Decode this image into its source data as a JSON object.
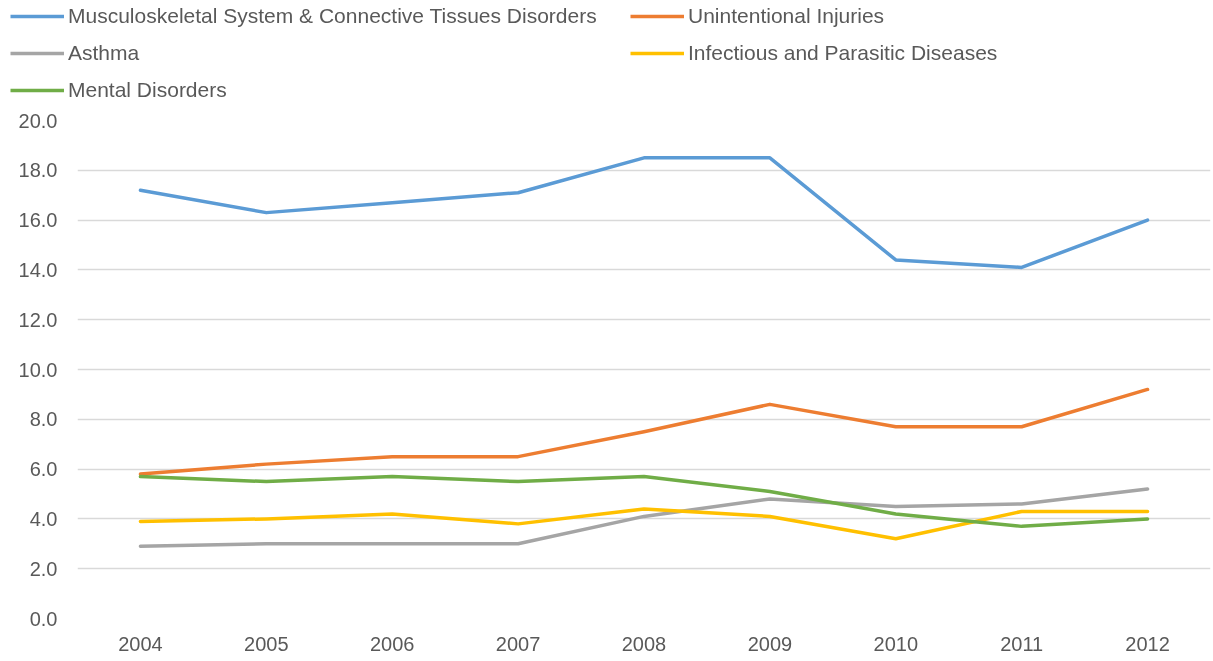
{
  "chart_data": {
    "type": "line",
    "categories": [
      "2004",
      "2005",
      "2006",
      "2007",
      "2008",
      "2009",
      "2010",
      "2011",
      "2012"
    ],
    "series": [
      {
        "name": "Musculoskeletal System & Connective Tissues Disorders",
        "color": "#5b9bd5",
        "values": [
          17.2,
          16.3,
          16.7,
          17.1,
          18.5,
          18.5,
          14.4,
          14.1,
          16.0
        ]
      },
      {
        "name": "Unintentional Injuries",
        "color": "#ed7d31",
        "values": [
          5.8,
          6.2,
          6.5,
          6.5,
          7.5,
          8.6,
          7.7,
          7.7,
          9.2
        ]
      },
      {
        "name": "Asthma",
        "color": "#a5a5a5",
        "values": [
          2.9,
          3.0,
          3.0,
          3.0,
          4.1,
          4.8,
          4.5,
          4.6,
          5.2
        ]
      },
      {
        "name": "Infectious and Parasitic Diseases",
        "color": "#ffc000",
        "values": [
          3.9,
          4.0,
          4.2,
          3.8,
          4.4,
          4.1,
          3.2,
          4.3,
          4.3
        ]
      },
      {
        "name": "Mental Disorders",
        "color": "#70ad47",
        "values": [
          5.7,
          5.5,
          5.7,
          5.5,
          5.7,
          5.1,
          4.2,
          3.7,
          4.0
        ]
      }
    ],
    "ylim": [
      0,
      20
    ],
    "yticks": [
      {
        "value": 0,
        "label": "0.0"
      },
      {
        "value": 2,
        "label": "2.0"
      },
      {
        "value": 4,
        "label": "4.0"
      },
      {
        "value": 6,
        "label": "6.0"
      },
      {
        "value": 8,
        "label": "8.0"
      },
      {
        "value": 10,
        "label": "10.0"
      },
      {
        "value": 12,
        "label": "12.0"
      },
      {
        "value": 14,
        "label": "14.0"
      },
      {
        "value": 16,
        "label": "16.0"
      },
      {
        "value": 18,
        "label": "18.0"
      },
      {
        "value": 20,
        "label": "20.0"
      }
    ],
    "grid": "y",
    "legend": "top",
    "marker": "none",
    "line_style": "solid"
  }
}
